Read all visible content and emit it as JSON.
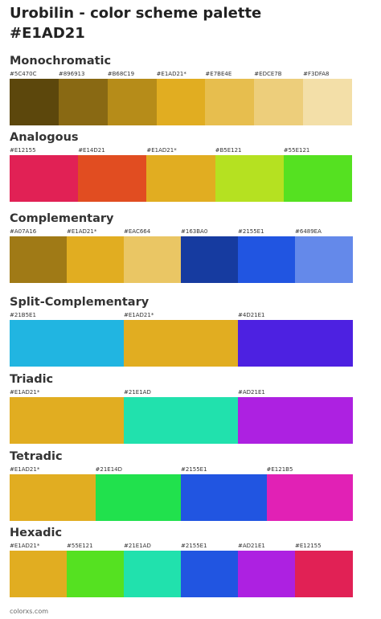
{
  "header": {
    "title": "Urobilin - color scheme palette",
    "subtitle": "#E1AD21"
  },
  "sections": [
    {
      "name": "Monochromatic",
      "swatches": [
        {
          "label": "#5C470C",
          "color": "#5C470C"
        },
        {
          "label": "#896913",
          "color": "#896913"
        },
        {
          "label": "#B68C19",
          "color": "#B68C19"
        },
        {
          "label": "#E1AD21*",
          "color": "#E1AD21"
        },
        {
          "label": "#E7BE4E",
          "color": "#E7BE4E"
        },
        {
          "label": "#EDCE7B",
          "color": "#EDCE7B"
        },
        {
          "label": "#F3DFA8",
          "color": "#F3DFA8"
        }
      ]
    },
    {
      "name": "Analogous",
      "swatches": [
        {
          "label": "#E12155",
          "color": "#E12155"
        },
        {
          "label": "#E14D21",
          "color": "#E14D21"
        },
        {
          "label": "#E1AD21*",
          "color": "#E1AD21"
        },
        {
          "label": "#B5E121",
          "color": "#B5E121"
        },
        {
          "label": "#55E121",
          "color": "#55E121"
        }
      ]
    },
    {
      "name": "Complementary",
      "swatches": [
        {
          "label": "#A07A16",
          "color": "#A07A16"
        },
        {
          "label": "#E1AD21*",
          "color": "#E1AD21"
        },
        {
          "label": "#EAC664",
          "color": "#EAC664"
        },
        {
          "label": "#163BA0",
          "color": "#163BA0"
        },
        {
          "label": "#2155E1",
          "color": "#2155E1"
        },
        {
          "label": "#6489EA",
          "color": "#6489EA"
        }
      ]
    },
    {
      "name": "Split-Complementary",
      "swatches": [
        {
          "label": "#21B5E1",
          "color": "#21B5E1"
        },
        {
          "label": "#E1AD21*",
          "color": "#E1AD21"
        },
        {
          "label": "#4D21E1",
          "color": "#4D21E1"
        }
      ]
    },
    {
      "name": "Triadic",
      "swatches": [
        {
          "label": "#E1AD21*",
          "color": "#E1AD21"
        },
        {
          "label": "#21E1AD",
          "color": "#21E1AD"
        },
        {
          "label": "#AD21E1",
          "color": "#AD21E1"
        }
      ]
    },
    {
      "name": "Tetradic",
      "swatches": [
        {
          "label": "#E1AD21*",
          "color": "#E1AD21"
        },
        {
          "label": "#21E14D",
          "color": "#21E14D"
        },
        {
          "label": "#2155E1",
          "color": "#2155E1"
        },
        {
          "label": "#E121B5",
          "color": "#E121B5"
        }
      ]
    },
    {
      "name": "Hexadic",
      "swatches": [
        {
          "label": "#E1AD21*",
          "color": "#E1AD21"
        },
        {
          "label": "#55E121",
          "color": "#55E121"
        },
        {
          "label": "#21E1AD",
          "color": "#21E1AD"
        },
        {
          "label": "#2155E1",
          "color": "#2155E1"
        },
        {
          "label": "#AD21E1",
          "color": "#AD21E1"
        },
        {
          "label": "#E12155",
          "color": "#E12155"
        }
      ]
    }
  ],
  "footer": "colorxs.com"
}
